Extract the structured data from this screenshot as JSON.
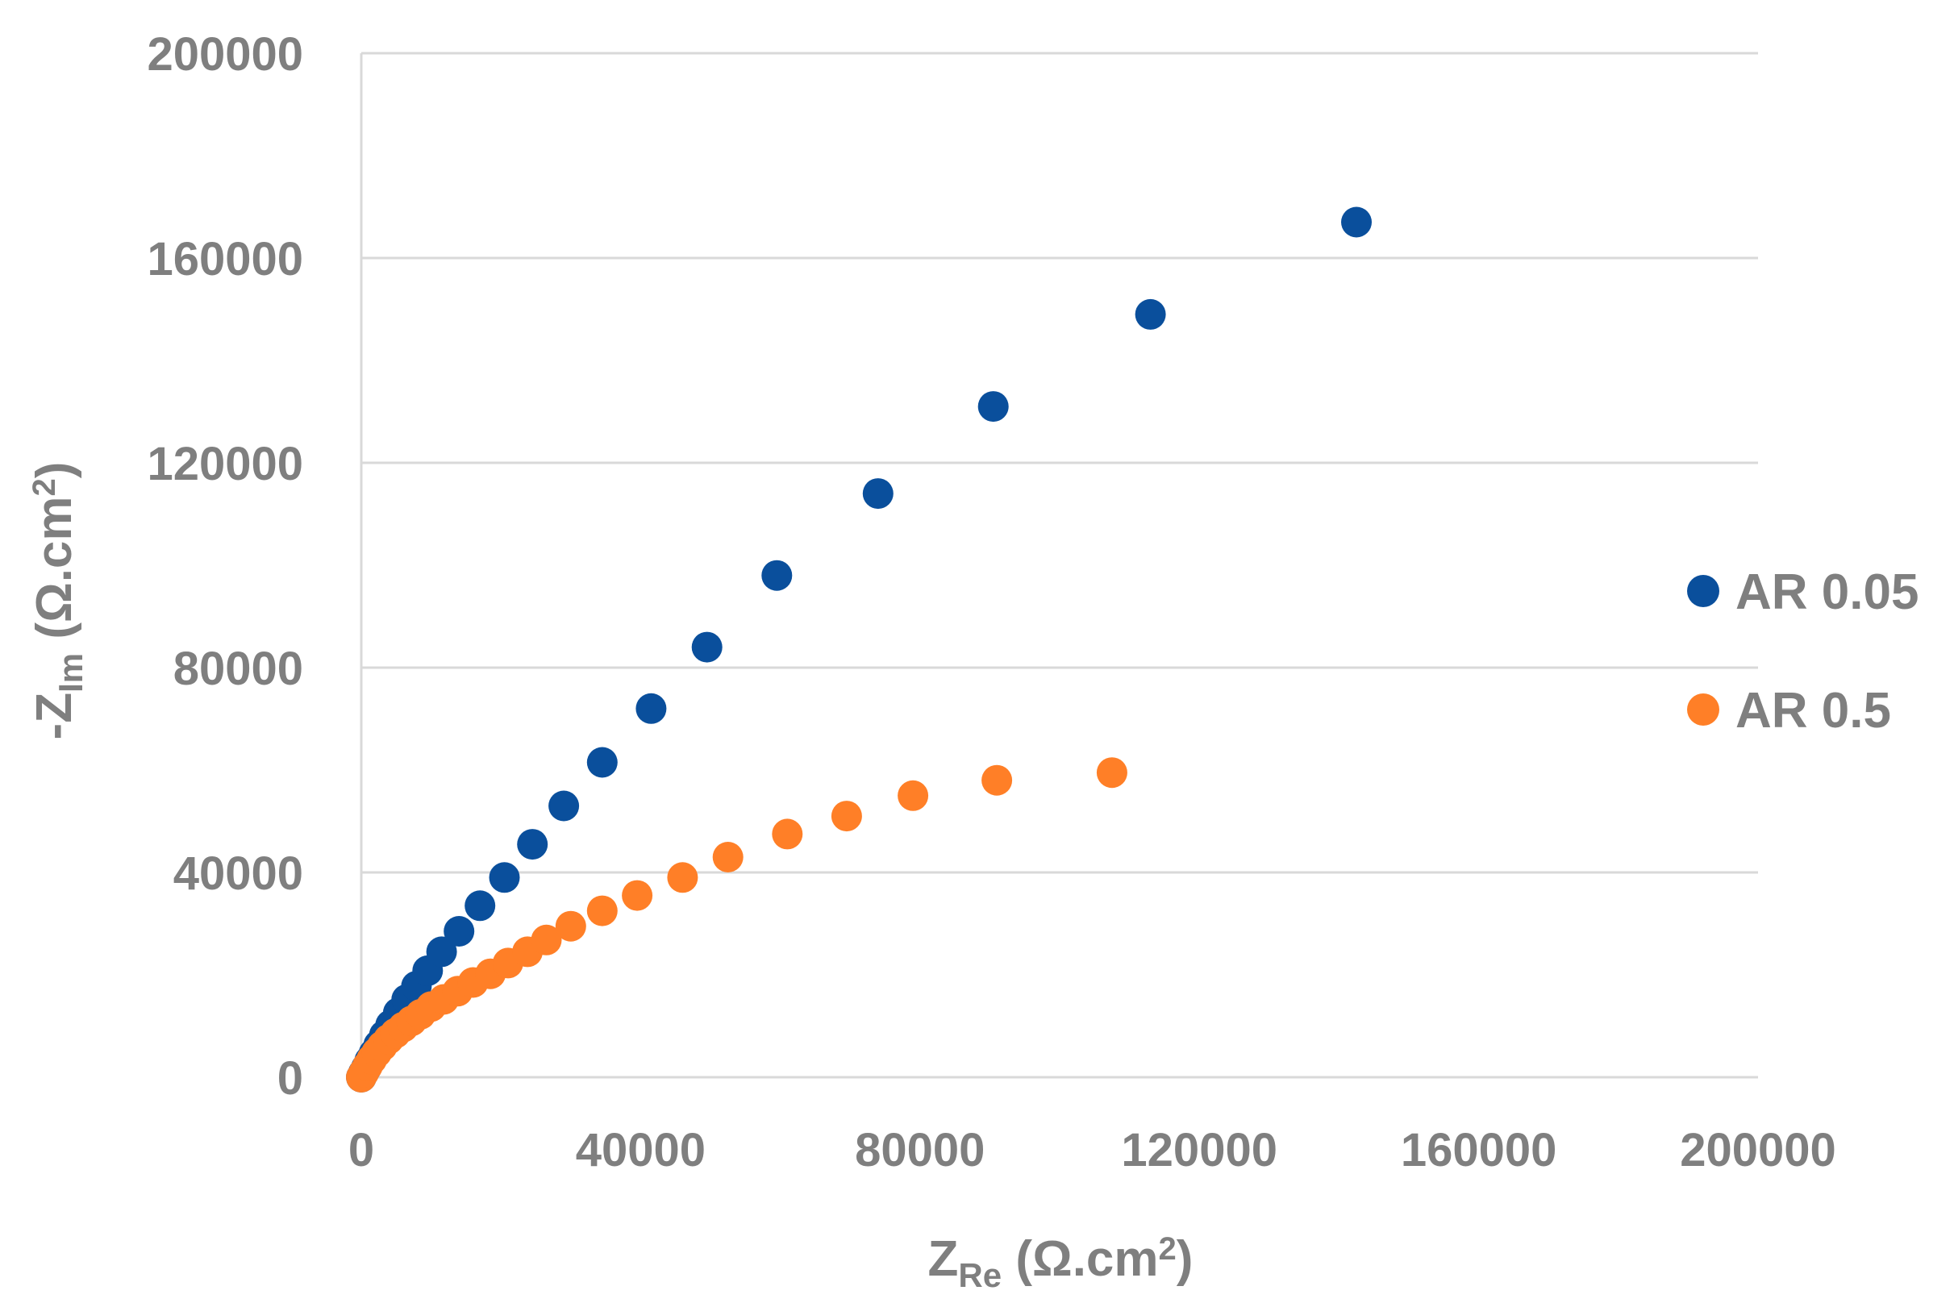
{
  "chart_data": {
    "type": "scatter",
    "xlabel": {
      "main": "Z",
      "sub": "Re",
      "unit": " (Ω.cm",
      "sup": "2",
      "close": ")"
    },
    "ylabel": {
      "main": "-Z",
      "sub": "Im",
      "unit": " (Ω.cm",
      "sup": "2",
      "close": ")"
    },
    "xlim": [
      0,
      200000
    ],
    "ylim": [
      0,
      200000
    ],
    "x_ticks": [
      0,
      40000,
      80000,
      120000,
      160000,
      200000
    ],
    "y_ticks": [
      0,
      40000,
      80000,
      120000,
      160000,
      200000
    ],
    "x_tick_labels": [
      "0",
      "40000",
      "80000",
      "120000",
      "160000",
      "200000"
    ],
    "y_tick_labels": [
      "0",
      "40000",
      "80000",
      "120000",
      "160000",
      "200000"
    ],
    "grid": "horizontal",
    "legend_position": "right",
    "series": [
      {
        "name": "AR 0.05",
        "color": "#0a4f9c",
        "points": [
          [
            0,
            0
          ],
          [
            300,
            800
          ],
          [
            700,
            1800
          ],
          [
            1200,
            3200
          ],
          [
            1800,
            4600
          ],
          [
            2500,
            6300
          ],
          [
            3300,
            8200
          ],
          [
            4200,
            10200
          ],
          [
            5300,
            12600
          ],
          [
            6500,
            15200
          ],
          [
            7900,
            17800
          ],
          [
            9500,
            20800
          ],
          [
            11500,
            24500
          ],
          [
            14000,
            28500
          ],
          [
            17000,
            33500
          ],
          [
            20500,
            39000
          ],
          [
            24500,
            45500
          ],
          [
            29000,
            53000
          ],
          [
            34500,
            61500
          ],
          [
            41500,
            72000
          ],
          [
            49500,
            84000
          ],
          [
            59500,
            98000
          ],
          [
            74000,
            114000
          ],
          [
            90500,
            131000
          ],
          [
            113000,
            149000
          ],
          [
            142500,
            167000
          ]
        ]
      },
      {
        "name": "AR 0.5",
        "color": "#ff7f27",
        "points": [
          [
            0,
            0
          ],
          [
            400,
            1000
          ],
          [
            900,
            2200
          ],
          [
            1500,
            3500
          ],
          [
            2200,
            4800
          ],
          [
            3000,
            6100
          ],
          [
            3900,
            7400
          ],
          [
            4900,
            8600
          ],
          [
            6000,
            9800
          ],
          [
            7200,
            11000
          ],
          [
            8500,
            12300
          ],
          [
            10000,
            13800
          ],
          [
            11800,
            15200
          ],
          [
            13800,
            16800
          ],
          [
            16000,
            18500
          ],
          [
            18500,
            20200
          ],
          [
            21000,
            22300
          ],
          [
            23800,
            24500
          ],
          [
            26500,
            26800
          ],
          [
            30000,
            29500
          ],
          [
            34500,
            32500
          ],
          [
            39500,
            35500
          ],
          [
            46000,
            39000
          ],
          [
            52500,
            43000
          ],
          [
            61000,
            47500
          ],
          [
            69500,
            51000
          ],
          [
            79000,
            55000
          ],
          [
            91000,
            58000
          ],
          [
            107500,
            59500
          ]
        ]
      }
    ]
  }
}
